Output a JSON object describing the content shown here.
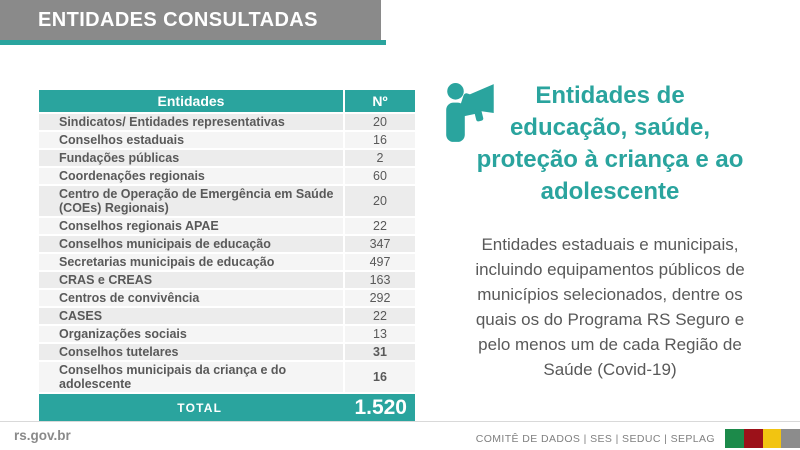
{
  "header": {
    "title": "ENTIDADES CONSULTADAS"
  },
  "table": {
    "col_entity": "Entidades",
    "col_count": "Nº",
    "rows": [
      {
        "name": "Sindicatos/ Entidades representativas",
        "count": "20",
        "bold_count": false
      },
      {
        "name": "Conselhos estaduais",
        "count": "16",
        "bold_count": false
      },
      {
        "name": "Fundações públicas",
        "count": "2",
        "bold_count": false
      },
      {
        "name": "Coordenações regionais",
        "count": "60",
        "bold_count": false
      },
      {
        "name": "Centro de Operação de Emergência em Saúde (COEs) Regionais)",
        "count": "20",
        "bold_count": false
      },
      {
        "name": "Conselhos regionais APAE",
        "count": "22",
        "bold_count": false
      },
      {
        "name": "Conselhos municipais de educação",
        "count": "347",
        "bold_count": false
      },
      {
        "name": "Secretarias municipais de educação",
        "count": "497",
        "bold_count": false
      },
      {
        "name": "CRAS e CREAS",
        "count": "163",
        "bold_count": false
      },
      {
        "name": "Centros de convivência",
        "count": "292",
        "bold_count": false
      },
      {
        "name": "CASES",
        "count": "22",
        "bold_count": false
      },
      {
        "name": "Organizações sociais",
        "count": "13",
        "bold_count": false
      },
      {
        "name": "Conselhos tutelares",
        "count": "31",
        "bold_count": true
      },
      {
        "name": "Conselhos municipais da criança e do adolescente",
        "count": "16",
        "bold_count": true
      }
    ],
    "total_label": "TOTAL",
    "total_value": "1.520"
  },
  "aside": {
    "icon": "megaphone-person-icon",
    "heading_lines": [
      "Entidades de",
      "educação, saúde,",
      "proteção à criança e ao",
      "adolescente"
    ],
    "body_lines": [
      "Entidades estaduais e municipais,",
      "incluindo equipamentos públicos de",
      "municípios selecionados, dentre os",
      "quais os do Programa RS Seguro e",
      "pelo menos um de cada Região de",
      "Saúde (Covid-19)"
    ]
  },
  "footer": {
    "site": "rs.gov.br",
    "credits": "COMITÊ DE DADOS | SES | SEDUC | SEPLAG",
    "flag_colors": [
      "#1C8A4A",
      "#9C1119",
      "#F2C411",
      "#8C8C8C"
    ]
  },
  "colors": {
    "accent_teal": "#2AA49E",
    "banner_gray": "#8A8A8A",
    "text_dark": "#595959"
  }
}
